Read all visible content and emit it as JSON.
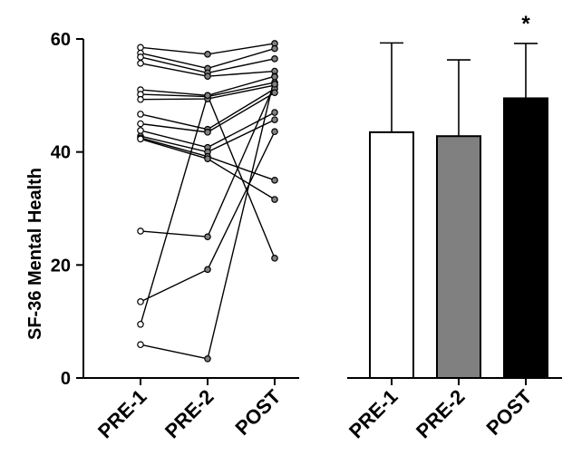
{
  "chart_data": [
    {
      "type": "line",
      "subtype": "paired-individual",
      "ylabel": "SF-36 Mental Health",
      "ylim": [
        0,
        60
      ],
      "yticks": [
        0,
        20,
        40,
        60
      ],
      "categories": [
        "PRE-1",
        "PRE-2",
        "POST"
      ],
      "marker_fill": {
        "PRE-1": "#ffffff",
        "PRE-2": "#808080",
        "POST": "#808080"
      },
      "series": [
        {
          "values": [
            58.5,
            57.3,
            59.2
          ]
        },
        {
          "values": [
            57.5,
            54.8,
            58.3
          ]
        },
        {
          "values": [
            56.8,
            54.0,
            56.5
          ]
        },
        {
          "values": [
            55.7,
            53.4,
            54.3
          ]
        },
        {
          "values": [
            51.0,
            50.0,
            53.4
          ]
        },
        {
          "values": [
            50.2,
            49.8,
            52.3
          ]
        },
        {
          "values": [
            49.3,
            49.4,
            51.8
          ]
        },
        {
          "values": [
            46.7,
            44.0,
            51.2
          ]
        },
        {
          "values": [
            45.0,
            43.5,
            50.5
          ]
        },
        {
          "values": [
            43.8,
            40.8,
            47.0
          ]
        },
        {
          "values": [
            42.8,
            40.0,
            45.7
          ]
        },
        {
          "values": [
            42.5,
            39.2,
            35.0
          ]
        },
        {
          "values": [
            42.3,
            38.8,
            31.6
          ]
        },
        {
          "values": [
            26.0,
            25.0,
            52.0
          ]
        },
        {
          "values": [
            13.5,
            19.2,
            43.6
          ]
        },
        {
          "values": [
            9.5,
            50.0,
            21.2
          ]
        },
        {
          "values": [
            5.9,
            3.4,
            53.3
          ]
        }
      ]
    },
    {
      "type": "bar",
      "categories": [
        "PRE-1",
        "PRE-2",
        "POST"
      ],
      "values": [
        43.5,
        42.8,
        49.5
      ],
      "errors": [
        15.8,
        13.5,
        9.7
      ],
      "colors": [
        "#ffffff",
        "#808080",
        "#000000"
      ],
      "ylim": [
        0,
        60
      ],
      "significance": [
        "",
        "",
        "*"
      ]
    }
  ]
}
